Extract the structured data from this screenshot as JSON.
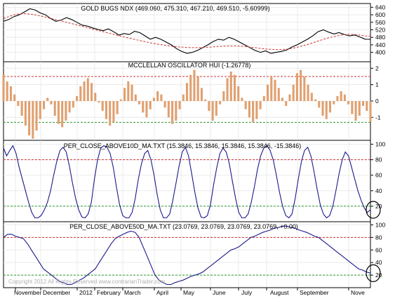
{
  "x_axis_labels": [
    "November",
    "December",
    "2012",
    "February",
    "March",
    "April",
    "May",
    "June",
    "July",
    "August",
    "September",
    "Nove"
  ],
  "watermark": "Copyright 2012 All Rights Reserved  www.contrarianTrader.com",
  "colors": {
    "price_line": "#000000",
    "moving_average": "#cc3333",
    "oscillator_bars": "#e0a070",
    "breadth_line": "#1a1a8c",
    "upper_reference": "#cc3333",
    "lower_reference": "#2a9a2a",
    "grid": "#e6e6e6",
    "highlight_circle": "#000000"
  },
  "chart_data": [
    {
      "type": "line",
      "title": "GOLD BUGS NDX (469.060, 475.310, 467.210, 469.510, -5.60999)",
      "ylim": [
        350,
        660
      ],
      "yticks": [
        "640",
        "600",
        "560",
        "520",
        "480",
        "440",
        "400"
      ],
      "series": [
        {
          "values": [
            565,
            575,
            590,
            600,
            615,
            632,
            626,
            610,
            600,
            580,
            565,
            572,
            585,
            575,
            560,
            545,
            540,
            530,
            522,
            515,
            525,
            510,
            492,
            500,
            495,
            512,
            505,
            488,
            470,
            480,
            470,
            455,
            440,
            420,
            405,
            395,
            400,
            410,
            425,
            440,
            458,
            470,
            465,
            480,
            470,
            455,
            440,
            425,
            410,
            400,
            408,
            395,
            400,
            405,
            412,
            428,
            440,
            455,
            470,
            488,
            510,
            520,
            508,
            498,
            505,
            495,
            488,
            492,
            482,
            470,
            469.5
          ]
        },
        {
          "values": [
            580,
            590,
            600,
            605,
            606,
            604,
            600,
            594,
            588,
            581,
            574,
            567,
            560,
            553,
            546,
            539,
            532,
            524,
            517,
            510,
            503,
            496,
            489,
            482,
            476,
            469,
            463,
            457,
            451,
            446,
            441,
            437,
            433,
            430,
            428,
            426,
            425,
            425,
            426,
            427,
            429,
            431,
            433,
            434,
            434,
            433,
            431,
            428,
            425,
            421,
            418,
            416,
            415,
            415,
            417,
            421,
            427,
            434,
            442,
            451,
            460,
            469,
            477,
            484,
            490,
            494,
            496,
            495,
            492,
            488,
            485
          ]
        }
      ]
    },
    {
      "type": "bar",
      "title": "MCCLELLAN OSCILLATOR HUI (-1.26778)",
      "ylim": [
        -2.4,
        2.4
      ],
      "yticks": [
        "2",
        "1",
        "0",
        "-1"
      ],
      "reference_lines": [
        1.5,
        -1.3
      ],
      "values": [
        1.6,
        1.2,
        0.9,
        0.4,
        -0.3,
        -0.9,
        -1.5,
        -2.1,
        -2.3,
        -1.8,
        -1.1,
        -0.5,
        0.2,
        -0.2,
        -0.9,
        -1.4,
        -1.6,
        -1.2,
        -0.7,
        -0.4,
        0.3,
        0.9,
        1.2,
        1.4,
        1.1,
        0.5,
        -0.1,
        -0.6,
        -1.1,
        -1.5,
        -1.3,
        -0.8,
        0.1,
        0.8,
        1.2,
        1.0,
        0.4,
        -0.2,
        -0.7,
        -1.0,
        -0.5,
        0.2,
        0.6,
        0.4,
        -0.4,
        -1.0,
        -1.4,
        -1.2,
        -0.5,
        0.4,
        1.1,
        1.6,
        1.9,
        1.5,
        0.8,
        0.1,
        -0.6,
        -1.2,
        -0.9,
        -0.2,
        0.6,
        1.4,
        1.8,
        1.6,
        0.9,
        0.2,
        -0.5,
        -1.0,
        -1.3,
        -1.1,
        -0.5,
        0.3,
        1.0,
        1.5,
        1.3,
        0.8,
        0.2,
        -0.3,
        0.4,
        1.0,
        1.7,
        1.9,
        1.5,
        1.0,
        0.5,
        0.1,
        -0.4,
        -0.9,
        -1.1,
        -0.7,
        -0.2,
        0.3,
        0.6,
        0.4,
        -0.2,
        -0.8,
        -1.2,
        -0.9,
        -0.3,
        -0.6,
        -1.27
      ]
    },
    {
      "type": "line",
      "title": "PER_CLOSE_ABOVE10D_MA.TXT (15.3846, 15.3846, 15.3846, 15.3846, -15.3846)",
      "ylim": [
        0,
        105
      ],
      "yticks": [
        "100",
        "80",
        "60",
        "40",
        "20"
      ],
      "reference_lines": [
        80,
        20
      ],
      "values": [
        95,
        85,
        92,
        98,
        88,
        70,
        55,
        40,
        25,
        12,
        5,
        5,
        8,
        15,
        25,
        40,
        60,
        78,
        92,
        96,
        90,
        72,
        50,
        30,
        15,
        6,
        5,
        10,
        25,
        55,
        80,
        95,
        98,
        96,
        88,
        70,
        45,
        22,
        8,
        5,
        5,
        12,
        30,
        55,
        75,
        88,
        92,
        80,
        60,
        35,
        15,
        5,
        5,
        10,
        28,
        50,
        72,
        90,
        96,
        85,
        62,
        38,
        18,
        6,
        5,
        8,
        22,
        48,
        70,
        88,
        95,
        90,
        75,
        52,
        30,
        12,
        5,
        5,
        10,
        25,
        45,
        68,
        85,
        95,
        98,
        92,
        80,
        60,
        38,
        20,
        8,
        5,
        10,
        30,
        55,
        78,
        92,
        96,
        85,
        65,
        42,
        22,
        10,
        5,
        8,
        20,
        40,
        62,
        80,
        90,
        85,
        70,
        55,
        40,
        28,
        18,
        12,
        15.38
      ]
    },
    {
      "type": "line",
      "title": "PER_CLOSE_ABOVE50D_MA.TXT (23.0769, 23.0769, 23.0769, 23.0769, +0.00)",
      "ylim": [
        0,
        105
      ],
      "yticks": [
        "100",
        "80",
        "60",
        "40",
        "20"
      ],
      "reference_lines": [
        80,
        20
      ],
      "values": [
        80,
        85,
        85,
        82,
        80,
        78,
        70,
        60,
        50,
        40,
        30,
        25,
        20,
        15,
        10,
        8,
        5,
        5,
        8,
        12,
        15,
        20,
        25,
        30,
        40,
        50,
        60,
        70,
        78,
        82,
        85,
        88,
        90,
        88,
        80,
        65,
        50,
        35,
        20,
        12,
        8,
        5,
        5,
        8,
        10,
        12,
        15,
        18,
        20,
        22,
        25,
        30,
        35,
        40,
        45,
        50,
        55,
        60,
        62,
        65,
        70,
        75,
        80,
        82,
        85,
        88,
        90,
        92,
        95,
        96,
        98,
        98,
        96,
        95,
        92,
        90,
        88,
        85,
        82,
        80,
        75,
        70,
        65,
        60,
        55,
        50,
        45,
        40,
        35,
        30,
        28,
        25,
        23.08
      ]
    }
  ]
}
